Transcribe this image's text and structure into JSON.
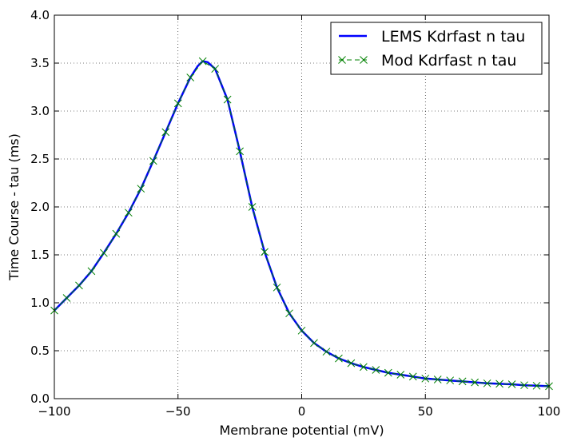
{
  "chart_data": {
    "type": "line",
    "xlabel": "Membrane potential (mV)",
    "ylabel": "Time Course - tau (ms)",
    "xlim": [
      -100,
      100
    ],
    "ylim": [
      0,
      4
    ],
    "xticks": [
      -100,
      -50,
      0,
      50,
      100
    ],
    "yticks": [
      0,
      0.5,
      1,
      1.5,
      2,
      2.5,
      3,
      3.5,
      4
    ],
    "xtick_labels": [
      "−100",
      "−50",
      "0",
      "50",
      "100"
    ],
    "ytick_labels": [
      "0.0",
      "0.5",
      "1.0",
      "1.5",
      "2.0",
      "2.5",
      "3.0",
      "3.5",
      "4.0"
    ],
    "grid": true,
    "legend_position": "top-right",
    "series": [
      {
        "name": "LEMS Kdrfast n tau",
        "color": "#0000ff",
        "style": "solid",
        "x": [
          -100,
          -95,
          -90,
          -85,
          -80,
          -75,
          -70,
          -65,
          -60,
          -55,
          -50,
          -45,
          -42,
          -40,
          -38,
          -35,
          -30,
          -25,
          -20,
          -15,
          -10,
          -5,
          0,
          5,
          10,
          15,
          20,
          25,
          30,
          35,
          40,
          45,
          50,
          55,
          60,
          65,
          70,
          75,
          80,
          85,
          90,
          95,
          100
        ],
        "y": [
          0.92,
          1.05,
          1.18,
          1.33,
          1.52,
          1.72,
          1.94,
          2.19,
          2.48,
          2.78,
          3.08,
          3.35,
          3.47,
          3.52,
          3.51,
          3.44,
          3.12,
          2.58,
          2.0,
          1.53,
          1.16,
          0.89,
          0.71,
          0.58,
          0.49,
          0.42,
          0.37,
          0.33,
          0.3,
          0.27,
          0.25,
          0.23,
          0.21,
          0.2,
          0.19,
          0.18,
          0.17,
          0.16,
          0.155,
          0.15,
          0.14,
          0.135,
          0.13
        ]
      },
      {
        "name": "Mod Kdrfast n tau",
        "color": "#008000",
        "style": "dashed-x",
        "x": [
          -100,
          -95,
          -90,
          -85,
          -80,
          -75,
          -70,
          -65,
          -60,
          -55,
          -50,
          -45,
          -40,
          -35,
          -30,
          -25,
          -20,
          -15,
          -10,
          -5,
          0,
          5,
          10,
          15,
          20,
          25,
          30,
          35,
          40,
          45,
          50,
          55,
          60,
          65,
          70,
          75,
          80,
          85,
          90,
          95,
          100
        ],
        "y": [
          0.92,
          1.05,
          1.18,
          1.33,
          1.52,
          1.72,
          1.94,
          2.19,
          2.48,
          2.78,
          3.08,
          3.35,
          3.52,
          3.44,
          3.12,
          2.58,
          2.0,
          1.53,
          1.16,
          0.89,
          0.71,
          0.58,
          0.49,
          0.42,
          0.37,
          0.33,
          0.3,
          0.27,
          0.25,
          0.23,
          0.21,
          0.2,
          0.19,
          0.18,
          0.17,
          0.16,
          0.155,
          0.15,
          0.14,
          0.135,
          0.13
        ]
      }
    ]
  }
}
